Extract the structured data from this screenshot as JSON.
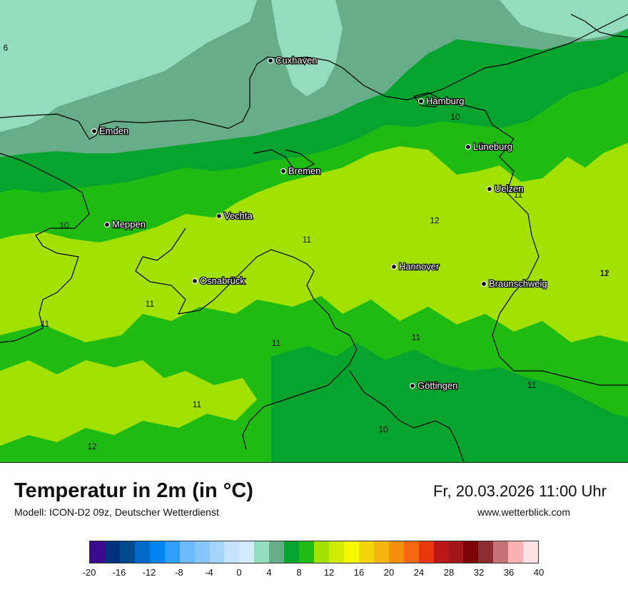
{
  "title": "Temperatur in 2m (in °C)",
  "subtitle": "Modell: ICON-D2 09z, Deutscher Wetterdienst",
  "datetime": "Fr, 20.03.2026 11:00 Uhr",
  "website": "www.wetterblick.com",
  "colors": {
    "t4": "#93dcbd",
    "t6": "#67ad8a",
    "t8": "#06a32e",
    "t10": "#1fbb12",
    "t12": "#a3e102",
    "sea_light": "#93dcbd",
    "border": "#000000"
  },
  "cities": [
    {
      "name": "Cuxhaven"
    },
    {
      "name": "Hamburg"
    },
    {
      "name": "Emden"
    },
    {
      "name": "Lüneburg"
    },
    {
      "name": "Bremen"
    },
    {
      "name": "Uelzen"
    },
    {
      "name": "Vechta"
    },
    {
      "name": "Meppen"
    },
    {
      "name": "Hannover"
    },
    {
      "name": "Osnabrück"
    },
    {
      "name": "Braunschweig"
    },
    {
      "name": "Göttingen"
    }
  ],
  "isotherm_labels": [
    "6",
    "10",
    "11",
    "12",
    "10",
    "11",
    "12",
    "11",
    "11",
    "11",
    "11",
    "11",
    "11",
    "11",
    "10",
    "12"
  ],
  "colorbar": {
    "colors": [
      "#3a0a8c",
      "#00317f",
      "#00498f",
      "#0068c8",
      "#0085f0",
      "#2f9dfa",
      "#6cbbfb",
      "#87c6fb",
      "#a5d4fc",
      "#c6e3fd",
      "#d4ebfd",
      "#93dcbd",
      "#67ad8a",
      "#06a32e",
      "#1fbb12",
      "#a3e102",
      "#d1ec04",
      "#f5f900",
      "#f3d60a",
      "#f5b60f",
      "#f48f0c",
      "#f56812",
      "#e9360c",
      "#b81618",
      "#a3161a",
      "#7d0406",
      "#8c2c30",
      "#c47178",
      "#fbb2b4",
      "#fde1e3"
    ],
    "ticks": [
      "-20",
      "-16",
      "-12",
      "-8",
      "-4",
      "0",
      "4",
      "8",
      "12",
      "16",
      "20",
      "24",
      "28",
      "32",
      "36",
      "40"
    ]
  }
}
